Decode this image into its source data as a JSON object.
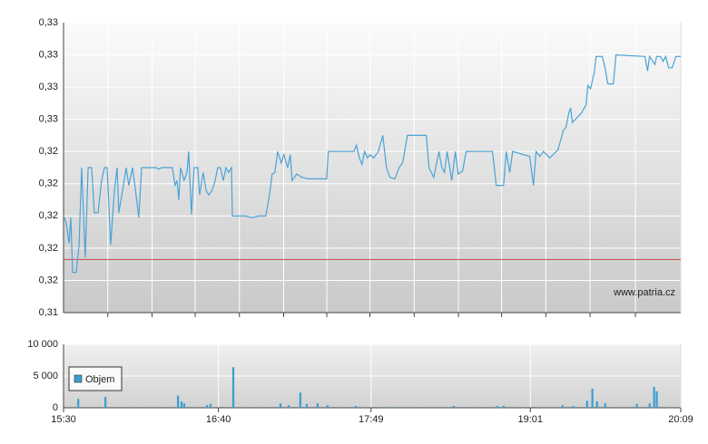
{
  "chart_data": [
    {
      "type": "line",
      "color": "#4aa3d6",
      "xlim": [
        930,
        1209
      ],
      "xgrid": [
        950,
        970,
        989.5,
        1009.5,
        1029.5,
        1049,
        1068.5,
        1088.5,
        1108.5,
        1128,
        1148,
        1168,
        1188.5
      ],
      "ylim": [
        0.3148,
        0.3328
      ],
      "yticks": [
        {
          "value": 0.3148,
          "label": "0,31"
        },
        {
          "value": 0.3168,
          "label": "0,32"
        },
        {
          "value": 0.3188,
          "label": "0,32"
        },
        {
          "value": 0.3208,
          "label": "0,32"
        },
        {
          "value": 0.3228,
          "label": "0,32"
        },
        {
          "value": 0.3248,
          "label": "0,32"
        },
        {
          "value": 0.3268,
          "label": "0,33"
        },
        {
          "value": 0.3288,
          "label": "0,33"
        },
        {
          "value": 0.3308,
          "label": "0,33"
        },
        {
          "value": 0.3328,
          "label": "0,33"
        }
      ],
      "grid": true,
      "reference_line": {
        "value": 0.3181,
        "color": "#cc4444"
      },
      "annotation": "www.patria.cz",
      "x": [
        930.0,
        931.2,
        932.5,
        933.3,
        934.1,
        935.7,
        937.0,
        938.2,
        939.8,
        941.1,
        942.7,
        943.9,
        945.6,
        947.2,
        948.5,
        949.7,
        951.3,
        953.0,
        954.2,
        955.0,
        956.7,
        958.3,
        959.5,
        961.2,
        962.8,
        964.0,
        965.3,
        971.8,
        973.1,
        974.3,
        979.2,
        980.4,
        981.3,
        982.1,
        982.9,
        984.5,
        985.8,
        986.6,
        987.8,
        989.0,
        990.7,
        991.5,
        993.1,
        994.4,
        995.6,
        997.2,
        998.5,
        999.7,
        1000.9,
        1002.2,
        1003.4,
        1004.6,
        1005.9,
        1006.3,
        1012.0,
        1015.3,
        1018.2,
        1021.4,
        1023.1,
        1024.3,
        1025.5,
        1026.8,
        1028.4,
        1029.6,
        1031.3,
        1032.5,
        1033.3,
        1035.4,
        1037.8,
        1040.7,
        1048.9,
        1049.7,
        1061.2,
        1062.4,
        1063.7,
        1064.9,
        1066.1,
        1067.4,
        1068.6,
        1070.2,
        1072.3,
        1074.3,
        1076.0,
        1077.6,
        1079.7,
        1081.7,
        1083.3,
        1085.4,
        1094.0,
        1095.2,
        1097.3,
        1099.7,
        1101.0,
        1102.2,
        1103.4,
        1105.5,
        1107.1,
        1108.4,
        1110.4,
        1112.0,
        1123.9,
        1125.6,
        1128.9,
        1130.1,
        1131.7,
        1133.0,
        1140.7,
        1142.4,
        1143.6,
        1145.3,
        1146.9,
        1149.8,
        1153.5,
        1155.9,
        1157.1,
        1158.4,
        1159.2,
        1160.0,
        1162.1,
        1164.1,
        1166.2,
        1167.0,
        1168.2,
        1169.9,
        1170.7,
        1173.5,
        1174.8,
        1176.0,
        1178.5,
        1179.7,
        1192.8,
        1194.0,
        1194.9,
        1197.3,
        1198.1,
        1199.8,
        1201.0,
        1202.2,
        1203.5,
        1205.1,
        1206.8,
        1209
      ],
      "values": [
        0.3208,
        0.3204,
        0.3191,
        0.3207,
        0.3173,
        0.3173,
        0.319,
        0.3238,
        0.3182,
        0.3238,
        0.3238,
        0.321,
        0.321,
        0.323,
        0.3238,
        0.3238,
        0.319,
        0.3224,
        0.3238,
        0.321,
        0.3224,
        0.3238,
        0.3227,
        0.3238,
        0.3221,
        0.3207,
        0.3238,
        0.3238,
        0.3237,
        0.3238,
        0.3238,
        0.3227,
        0.323,
        0.3218,
        0.3238,
        0.323,
        0.3235,
        0.3248,
        0.3209,
        0.3238,
        0.3238,
        0.3221,
        0.3235,
        0.3224,
        0.3221,
        0.3224,
        0.323,
        0.3238,
        0.3238,
        0.323,
        0.3238,
        0.3235,
        0.3238,
        0.3208,
        0.3208,
        0.3207,
        0.3208,
        0.3208,
        0.3221,
        0.3234,
        0.3235,
        0.3248,
        0.3241,
        0.3246,
        0.3238,
        0.3246,
        0.323,
        0.3234,
        0.3232,
        0.3231,
        0.3231,
        0.3248,
        0.3248,
        0.3252,
        0.3244,
        0.324,
        0.3248,
        0.3244,
        0.3246,
        0.3244,
        0.3248,
        0.3258,
        0.3238,
        0.3232,
        0.3231,
        0.3238,
        0.3241,
        0.3258,
        0.3258,
        0.3238,
        0.3232,
        0.3248,
        0.3238,
        0.3235,
        0.3248,
        0.323,
        0.3248,
        0.3234,
        0.3236,
        0.3248,
        0.3248,
        0.3227,
        0.3227,
        0.3248,
        0.3235,
        0.3248,
        0.3245,
        0.3227,
        0.3248,
        0.3245,
        0.3248,
        0.3244,
        0.3249,
        0.3261,
        0.3263,
        0.3272,
        0.3275,
        0.3266,
        0.3269,
        0.3272,
        0.3277,
        0.3289,
        0.3287,
        0.3297,
        0.3307,
        0.3307,
        0.33,
        0.329,
        0.329,
        0.3308,
        0.3307,
        0.3298,
        0.3307,
        0.3302,
        0.3307,
        0.3307,
        0.3304,
        0.3307,
        0.33,
        0.33,
        0.3307,
        0.3307
      ]
    },
    {
      "type": "bar",
      "xlim": [
        930,
        1209
      ],
      "xticks": [
        {
          "value": 930,
          "label": "15:30"
        },
        {
          "value": 1000,
          "label": "16:40"
        },
        {
          "value": 1069,
          "label": "17:49"
        },
        {
          "value": 1141,
          "label": "19:01"
        },
        {
          "value": 1209,
          "label": "20:09"
        }
      ],
      "ylim": [
        0,
        10000
      ],
      "yticks": [
        0,
        {
          "value": 5000,
          "label": "5 000"
        },
        {
          "value": 10000,
          "label": "10 000"
        }
      ],
      "grid": true,
      "legend": "left",
      "x": [
        936.6,
        948.9,
        981.7,
        983.3,
        984.5,
        994.8,
        996.4,
        1006.7,
        1028.0,
        1031.7,
        1037.0,
        1039.9,
        1044.8,
        1049.3,
        1062.0,
        1076.4,
        1106.3,
        1126.0,
        1128.9,
        1155.5,
        1160.4,
        1166.6,
        1169.0,
        1171.1,
        1174.8,
        1189.1,
        1194.9,
        1196.9,
        1198.1
      ],
      "series": [
        {
          "name": "Objem",
          "color": "#3a9fd0",
          "values": [
            1400,
            1700,
            1900,
            1000,
            700,
            400,
            600,
            6400,
            700,
            400,
            2400,
            600,
            700,
            400,
            300,
            150,
            300,
            300,
            300,
            400,
            300,
            1100,
            3000,
            1000,
            700,
            600,
            700,
            3300,
            2600
          ]
        }
      ]
    }
  ]
}
